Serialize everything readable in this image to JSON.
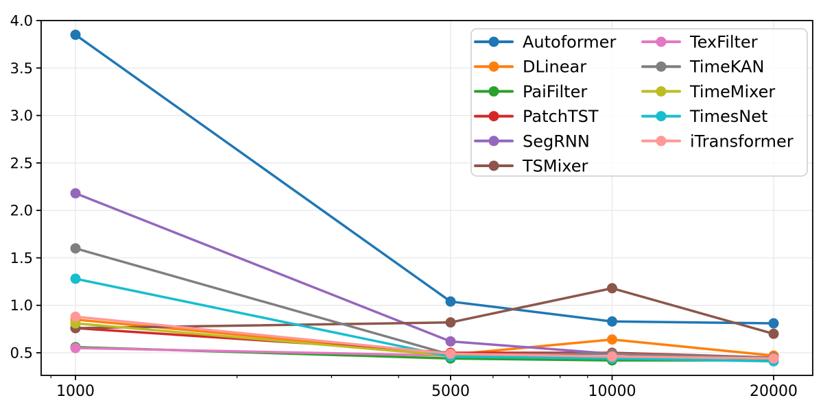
{
  "chart_data": {
    "type": "line",
    "title": "",
    "xlabel": "",
    "ylabel": "",
    "x": [
      1000,
      5000,
      10000,
      20000
    ],
    "x_scale": "log",
    "xtick_labels": [
      "1000",
      "5000",
      "10000",
      "20000"
    ],
    "minor_xticks": [
      900,
      2000,
      3000,
      4000,
      6000,
      7000,
      8000,
      9000
    ],
    "yticks": [
      0.5,
      1.0,
      1.5,
      2.0,
      2.5,
      3.0,
      3.5,
      4.0
    ],
    "ytick_labels": [
      "0.5",
      "1.0",
      "1.5",
      "2.0",
      "2.5",
      "3.0",
      "3.5",
      "4.0"
    ],
    "xlim": [
      863,
      23650
    ],
    "ylim": [
      0.262,
      4.0
    ],
    "grid": true,
    "legend_position": "upper right",
    "legend_columns": 2,
    "series": [
      {
        "name": "Autoformer",
        "color": "#1f77b4",
        "values": [
          3.85,
          1.04,
          0.83,
          0.81
        ]
      },
      {
        "name": "DLinear",
        "color": "#ff7f0e",
        "values": [
          0.85,
          0.48,
          0.64,
          0.47
        ]
      },
      {
        "name": "PaiFilter",
        "color": "#2ca02c",
        "values": [
          0.56,
          0.44,
          0.42,
          0.42
        ]
      },
      {
        "name": "PatchTST",
        "color": "#d62728",
        "values": [
          0.76,
          0.5,
          0.5,
          0.45
        ]
      },
      {
        "name": "SegRNN",
        "color": "#9467bd",
        "values": [
          2.18,
          0.62,
          0.49,
          0.44
        ]
      },
      {
        "name": "TSMixer",
        "color": "#8c564b",
        "values": [
          0.76,
          0.82,
          1.18,
          0.7
        ]
      },
      {
        "name": "TexFilter",
        "color": "#e377c2",
        "values": [
          0.55,
          0.47,
          0.46,
          0.44
        ]
      },
      {
        "name": "TimeKAN",
        "color": "#7f7f7f",
        "values": [
          1.6,
          0.48,
          0.49,
          0.45
        ]
      },
      {
        "name": "TimeMixer",
        "color": "#bcbd22",
        "values": [
          0.81,
          0.47,
          0.46,
          0.44
        ]
      },
      {
        "name": "TimesNet",
        "color": "#17becf",
        "values": [
          1.28,
          0.46,
          0.44,
          0.41
        ]
      },
      {
        "name": "iTransformer",
        "color": "#ff9896",
        "values": [
          0.88,
          0.49,
          0.46,
          0.44
        ]
      }
    ],
    "style_colors": {
      "grid": "#e6e6e6",
      "spine": "#000000",
      "tick_label": "#000000",
      "legend_border": "#cccccc",
      "legend_background": "#ffffff",
      "background": "#ffffff"
    }
  }
}
